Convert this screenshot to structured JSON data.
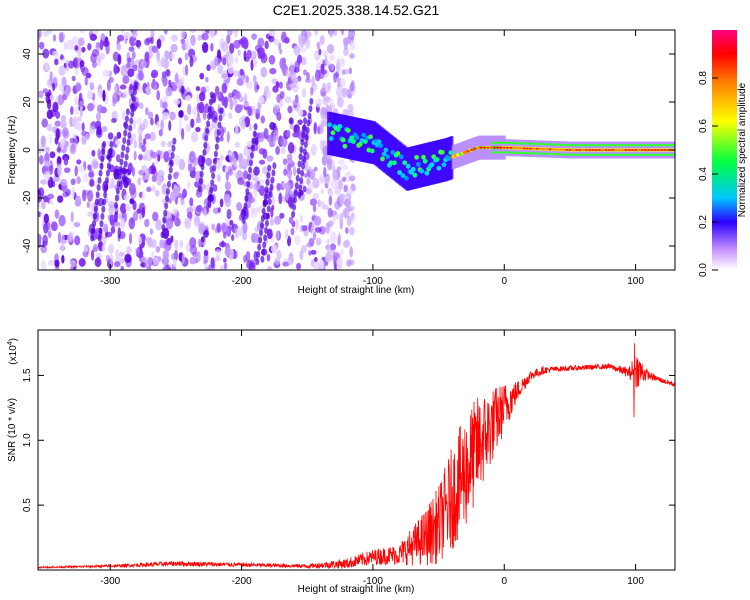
{
  "title": "C2E1.2025.338.14.52.G21",
  "chart_data": [
    {
      "type": "heatmap",
      "title": "C2E1.2025.338.14.52.G21",
      "xlabel": "Height of straight line (km)",
      "ylabel": "Frequency (Hz)",
      "xlim": [
        -355,
        130
      ],
      "ylim": [
        -50,
        50
      ],
      "xticks": [
        -300,
        -200,
        -100,
        0,
        100
      ],
      "yticks": [
        40,
        20,
        0,
        -20,
        -40
      ],
      "colorbar": {
        "label": "Normalized spectral amplitude",
        "range": [
          0.0,
          1.0
        ],
        "ticks": [
          0.0,
          0.2,
          0.4,
          0.6,
          0.8
        ],
        "colormap": [
          "#ffffff",
          "#b060ff",
          "#2b00ff",
          "#00c8ff",
          "#00ff40",
          "#ffff00",
          "#ff8000",
          "#ff0000",
          "#ff0080"
        ]
      },
      "features": {
        "noise_region_x": [
          -355,
          -130
        ],
        "signal_track": [
          {
            "x": -135,
            "y": 7
          },
          {
            "x": -100,
            "y": 3
          },
          {
            "x": -75,
            "y": -8
          },
          {
            "x": -45,
            "y": -4
          },
          {
            "x": -20,
            "y": 1
          },
          {
            "x": 0,
            "y": 1
          },
          {
            "x": 50,
            "y": 0
          },
          {
            "x": 130,
            "y": 0
          }
        ]
      }
    },
    {
      "type": "line",
      "xlabel": "Height of straight line (km)",
      "ylabel": "SNR (10 * v/v)",
      "multiplier": "(x10",
      "multiplier_exp": "4",
      "xlim": [
        -355,
        130
      ],
      "ylim": [
        0.0,
        1.85
      ],
      "xticks": [
        -300,
        -200,
        -100,
        0,
        100
      ],
      "yticks": [
        0.5,
        1.0,
        1.5
      ],
      "yticklabels": [
        "0.5",
        "1.0",
        "1.5"
      ],
      "series": [
        {
          "name": "SNR",
          "color": "#ff0000",
          "x": [
            -355,
            -300,
            -250,
            -200,
            -150,
            -120,
            -100,
            -80,
            -60,
            -50,
            -40,
            -30,
            -20,
            -10,
            0,
            10,
            20,
            30,
            40,
            60,
            80,
            95,
            100,
            110,
            120,
            130
          ],
          "y": [
            0.02,
            0.03,
            0.05,
            0.04,
            0.03,
            0.05,
            0.1,
            0.12,
            0.25,
            0.35,
            0.55,
            0.75,
            0.95,
            1.1,
            1.25,
            1.38,
            1.5,
            1.54,
            1.55,
            1.56,
            1.57,
            1.52,
            1.55,
            1.5,
            1.46,
            1.43
          ],
          "noise": [
            0.005,
            0.01,
            0.02,
            0.015,
            0.015,
            0.04,
            0.06,
            0.08,
            0.22,
            0.3,
            0.4,
            0.45,
            0.4,
            0.3,
            0.2,
            0.08,
            0.04,
            0.03,
            0.02,
            0.02,
            0.02,
            0.04,
            0.15,
            0.03,
            0.02,
            0.02
          ]
        }
      ]
    }
  ]
}
